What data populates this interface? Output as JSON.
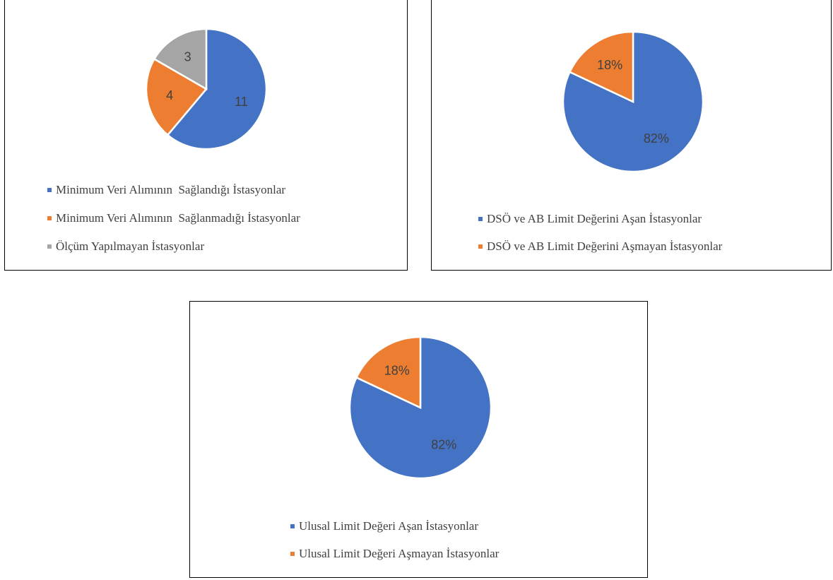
{
  "chart_data": [
    {
      "type": "pie",
      "series": [
        {
          "values": [
            11,
            4,
            3
          ],
          "labels": [
            "11",
            "4",
            "3"
          ],
          "colors": [
            "#4472C4",
            "#ED7D31",
            "#A5A5A5"
          ]
        }
      ],
      "legend": {
        "placement": "bottom",
        "entries": [
          "Minimum Veri Alımının  Sağlandığı İstasyonlar",
          "Minimum Veri Alımının  Sağlanmadığı İstasyonlar",
          "Ölçüm Yapılmayan İstasyonlar"
        ]
      }
    },
    {
      "type": "pie",
      "series": [
        {
          "values": [
            82,
            18
          ],
          "labels": [
            "82%",
            "18%"
          ],
          "colors": [
            "#4472C4",
            "#ED7D31"
          ]
        }
      ],
      "legend": {
        "placement": "bottom",
        "entries": [
          "DSÖ ve AB Limit Değerini Aşan İstasyonlar",
          "DSÖ ve AB Limit Değerini Aşmayan İstasyonlar"
        ]
      }
    },
    {
      "type": "pie",
      "series": [
        {
          "values": [
            82,
            18
          ],
          "labels": [
            "82%",
            "18%"
          ],
          "colors": [
            "#4472C4",
            "#ED7D31"
          ]
        }
      ],
      "legend": {
        "placement": "bottom",
        "entries": [
          "Ulusal Limit Değeri Aşan İstasyonlar",
          "Ulusal Limit Değeri Aşmayan İstasyonlar"
        ]
      }
    }
  ]
}
